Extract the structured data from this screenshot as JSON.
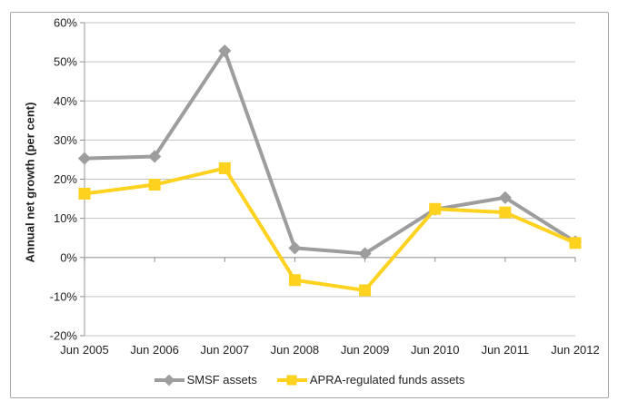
{
  "chart_data": {
    "type": "line",
    "title": "",
    "xlabel": "",
    "ylabel": "Annual net growth (per cent)",
    "categories": [
      "Jun 2005",
      "Jun 2006",
      "Jun 2007",
      "Jun 2008",
      "Jun 2009",
      "Jun 2010",
      "Jun 2011",
      "Jun 2012"
    ],
    "series": [
      {
        "name": "SMSF assets",
        "marker": "diamond",
        "color": "#9d9d9d",
        "values": [
          25.3,
          25.8,
          52.8,
          2.4,
          1.0,
          12.3,
          15.3,
          4.0
        ]
      },
      {
        "name": "APRA-regulated funds assets",
        "marker": "square",
        "color": "#fed21f",
        "values": [
          16.3,
          18.6,
          22.8,
          -5.8,
          -8.4,
          12.4,
          11.5,
          3.7
        ]
      }
    ],
    "ylim": [
      -20,
      60
    ],
    "ytick_step": 10,
    "ytick_format": "percent",
    "ytick_labels": [
      "-20%",
      "-10%",
      "0%",
      "10%",
      "20%",
      "30%",
      "40%",
      "50%",
      "60%"
    ],
    "grid": true,
    "legend_position": "bottom"
  },
  "colors": {
    "gridline": "#c3c3c3",
    "axis_line": "#a6a6a6",
    "tick_mark": "#8c8c8c",
    "text": "#1f1f1f",
    "chart_border": "#a6a6a6",
    "background": "#ffffff"
  }
}
